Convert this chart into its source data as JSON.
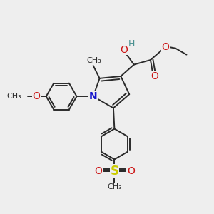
{
  "bg_color": "#eeeeee",
  "bond_color": "#2a2a2a",
  "bond_width": 1.4,
  "N_color": "#1414cc",
  "O_color": "#cc1414",
  "S_color": "#cccc00",
  "H_color": "#4a9090",
  "C_color": "#2a2a2a",
  "font_size": 9,
  "fig_size": [
    3.0,
    3.0
  ],
  "dpi": 100,
  "xlim": [
    0,
    10
  ],
  "ylim": [
    0,
    10
  ]
}
